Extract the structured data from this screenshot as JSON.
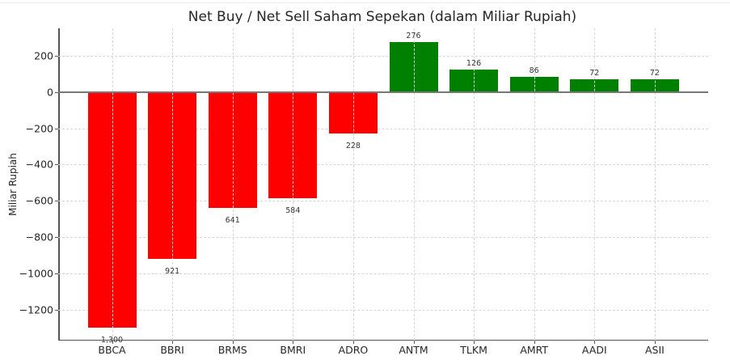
{
  "chart_data": {
    "type": "bar",
    "title": "Net Buy / Net Sell Saham Sepekan (dalam Miliar Rupiah)",
    "xlabel": "",
    "ylabel": "Miliar Rupiah",
    "categories": [
      "BBCA",
      "BBRI",
      "BRMS",
      "BMRI",
      "ADRO",
      "ANTM",
      "TLKM",
      "AMRT",
      "AADI",
      "ASII"
    ],
    "values": [
      -1300,
      -921,
      -641,
      -584,
      -228,
      276,
      126,
      86,
      72,
      72
    ],
    "data_labels": [
      "1,300",
      "921",
      "641",
      "584",
      "228",
      "276",
      "126",
      "86",
      "72",
      "72"
    ],
    "ylim": [
      -1372,
      353
    ],
    "yticks": [
      200,
      0,
      -200,
      -400,
      -600,
      -800,
      -1000,
      -1200
    ],
    "ytick_labels": [
      "200",
      "0",
      "−200",
      "−400",
      "−600",
      "−800",
      "−1000",
      "−1200"
    ],
    "grid": true,
    "legend": null,
    "colors": {
      "negative": "#ff0000",
      "positive": "#008000"
    }
  }
}
